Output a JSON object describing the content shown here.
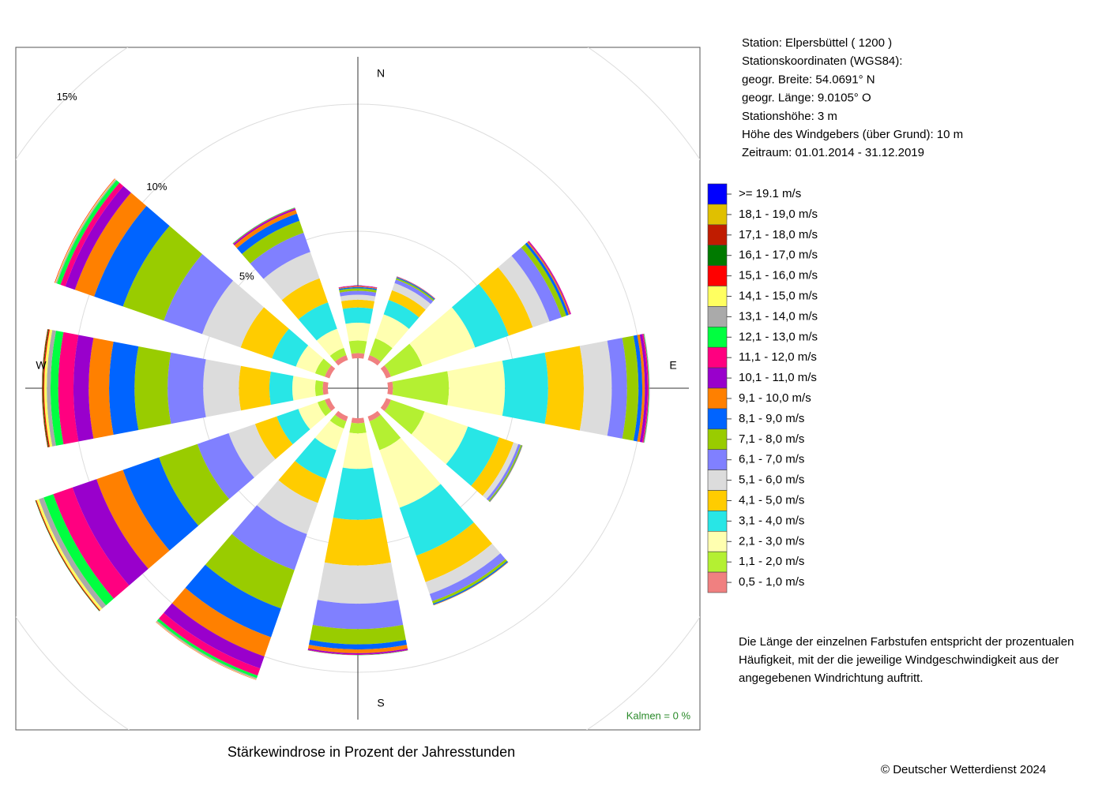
{
  "chart_data": {
    "type": "windrose",
    "title": "Stärkewindrose in Prozent der Jahresstunden",
    "directions": [
      "N",
      null,
      null,
      "E",
      null,
      null,
      "S",
      null,
      null,
      "W",
      null,
      null
    ],
    "rlim": [
      0,
      15
    ],
    "rticks": [
      {
        "value": 5,
        "label": "5%"
      },
      {
        "value": 10,
        "label": "10%"
      },
      {
        "value": 15,
        "label": "15%"
      }
    ],
    "grid": true,
    "calm_label": "Kalmen  =  0 %",
    "series": [
      {
        "name": "0,5 - 1,0 m/s",
        "color": "#f08080",
        "values": [
          0.2,
          0.2,
          0.2,
          0.2,
          0.2,
          0.2,
          0.2,
          0.2,
          0.2,
          0.2,
          0.2,
          0.2
        ]
      },
      {
        "name": "1,1 - 2,0 m/s",
        "color": "#b4f032",
        "values": [
          0.5,
          0.7,
          1.3,
          2.2,
          1.4,
          1.2,
          0.4,
          0.3,
          0.3,
          0.3,
          0.4,
          0.3
        ]
      },
      {
        "name": "2,1 - 3,0 m/s",
        "color": "#ffffb0",
        "values": [
          0.7,
          1.0,
          2.2,
          2.2,
          1.8,
          2.4,
          1.4,
          0.9,
          0.8,
          0.9,
          0.8,
          0.8
        ]
      },
      {
        "name": "3,1 - 4,0 m/s",
        "color": "#28e6e6",
        "values": [
          0.6,
          0.6,
          1.4,
          1.7,
          1.3,
          2.0,
          2.0,
          1.2,
          0.9,
          0.9,
          1.0,
          1.1
        ]
      },
      {
        "name": "4,1 - 5,0 m/s",
        "color": "#ffcc00",
        "values": [
          0.3,
          0.4,
          1.0,
          1.4,
          0.6,
          1.1,
          1.8,
          1.0,
          0.9,
          1.2,
          1.3,
          1.0
        ]
      },
      {
        "name": "5,1 - 6,0 m/s",
        "color": "#dcdcdc",
        "values": [
          0.2,
          0.3,
          0.7,
          1.1,
          0.2,
          0.5,
          1.5,
          1.3,
          1.1,
          1.4,
          1.6,
          1.1
        ]
      },
      {
        "name": "6,1 - 7,0 m/s",
        "color": "#8080ff",
        "values": [
          0.15,
          0.15,
          0.5,
          0.6,
          0.1,
          0.3,
          1.0,
          1.5,
          1.3,
          1.4,
          1.6,
          0.8
        ]
      },
      {
        "name": "7,1 - 8,0 m/s",
        "color": "#99cc00",
        "values": [
          0.1,
          0.06,
          0.2,
          0.45,
          0.05,
          0.1,
          0.6,
          1.6,
          1.6,
          1.3,
          1.7,
          0.5
        ]
      },
      {
        "name": "8,1 - 9,0 m/s",
        "color": "#0064ff",
        "values": [
          0.05,
          0.04,
          0.1,
          0.15,
          0.02,
          0.05,
          0.2,
          1.2,
          1.5,
          1.0,
          1.2,
          0.3
        ]
      },
      {
        "name": "9,1 - 10,0 m/s",
        "color": "#ff8000",
        "values": [
          0.03,
          0.02,
          0.05,
          0.1,
          0.01,
          0.02,
          0.15,
          0.8,
          1.1,
          0.8,
          0.8,
          0.15
        ]
      },
      {
        "name": "10,1 - 11,0 m/s",
        "color": "#9900cc",
        "values": [
          0.02,
          0.01,
          0.03,
          0.1,
          0,
          0,
          0.05,
          0.5,
          1.0,
          0.6,
          0.4,
          0.05
        ]
      },
      {
        "name": "11,1 - 12,0 m/s",
        "color": "#ff0080",
        "values": [
          0.01,
          0,
          0.02,
          0.05,
          0,
          0,
          0.02,
          0.3,
          0.8,
          0.6,
          0.2,
          0.03
        ]
      },
      {
        "name": "12,1 - 13,0 m/s",
        "color": "#00ff40",
        "values": [
          0,
          0,
          0,
          0.02,
          0,
          0,
          0.01,
          0.1,
          0.4,
          0.3,
          0.15,
          0.02
        ]
      },
      {
        "name": "13,1 - 14,0 m/s",
        "color": "#aaaaaa",
        "values": [
          0,
          0,
          0,
          0.02,
          0,
          0,
          0,
          0.05,
          0.2,
          0.15,
          0.05,
          0.01
        ]
      },
      {
        "name": "14,1 - 15,0 m/s",
        "color": "#ffff60",
        "values": [
          0,
          0,
          0,
          0,
          0,
          0,
          0,
          0.02,
          0.1,
          0.1,
          0.03,
          0
        ]
      },
      {
        "name": "15,1 - 16,0 m/s",
        "color": "#ff0000",
        "values": [
          0,
          0,
          0,
          0,
          0,
          0,
          0,
          0.01,
          0.03,
          0.04,
          0.02,
          0
        ]
      },
      {
        "name": "16,1 - 17,0 m/s",
        "color": "#007a00",
        "values": [
          0,
          0,
          0,
          0,
          0,
          0,
          0,
          0,
          0.02,
          0.03,
          0,
          0
        ]
      },
      {
        "name": "17,1 - 18,0 m/s",
        "color": "#c01c00",
        "values": [
          0,
          0,
          0,
          0,
          0,
          0,
          0,
          0,
          0,
          0.02,
          0,
          0
        ]
      },
      {
        "name": "18,1 - 19,0 m/s",
        "color": "#e0c000",
        "values": [
          0,
          0,
          0,
          0,
          0,
          0,
          0,
          0,
          0,
          0,
          0,
          0
        ]
      },
      {
        "name": ">= 19.1 m/s",
        "color": "#0000ff",
        "values": [
          0,
          0,
          0,
          0,
          0,
          0,
          0,
          0,
          0,
          0,
          0,
          0
        ]
      }
    ]
  },
  "info_lines": [
    "Station:  Elpersbüttel  ( 1200 )",
    "Stationskoordinaten (WGS84):",
    "geogr. Breite: 54.0691° N",
    "geogr. Länge:   9.0105° O",
    "Stationshöhe: 3 m",
    "Höhe des Windgebers (über Grund): 10 m",
    "Zeitraum: 01.01.2014 - 31.12.2019"
  ],
  "note_lines": [
    "Die Länge der einzelnen Farbstufen entspricht der prozentualen",
    "Häufigkeit, mit der die jeweilige Windgeschwindigkeit aus der",
    "angegebenen Windrichtung auftritt."
  ],
  "copyright": "© Deutscher Wetterdienst  2024"
}
